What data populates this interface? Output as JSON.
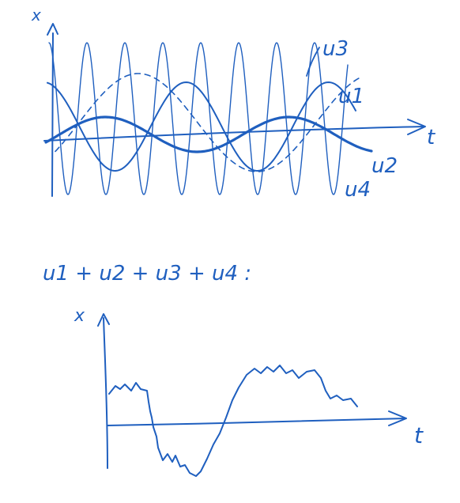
{
  "ink_color": "#1f5fbf",
  "top_plot": {
    "y_axis_label": "x",
    "x_axis_label": "t",
    "labels": {
      "u3": "u3",
      "u1": "u1",
      "u2": "u2",
      "u4": "u4"
    },
    "curves": [
      {
        "id": "u1",
        "style": "solid-thin",
        "shape": "sine, large amplitude, long period"
      },
      {
        "id": "u2",
        "style": "solid-thick",
        "shape": "sine, small amplitude, long period"
      },
      {
        "id": "u3",
        "style": "dashed",
        "shape": "sine, medium amplitude, very long period"
      },
      {
        "id": "u4",
        "style": "solid-thin",
        "shape": "sine, very large amplitude, short period"
      }
    ]
  },
  "sum_label": "u1 + u2 + u3 + u4 :",
  "bottom_plot": {
    "y_axis_label": "x",
    "x_axis_label": "t",
    "curve": {
      "id": "sum",
      "style": "solid-thin",
      "shape": "irregular sum signal"
    }
  }
}
